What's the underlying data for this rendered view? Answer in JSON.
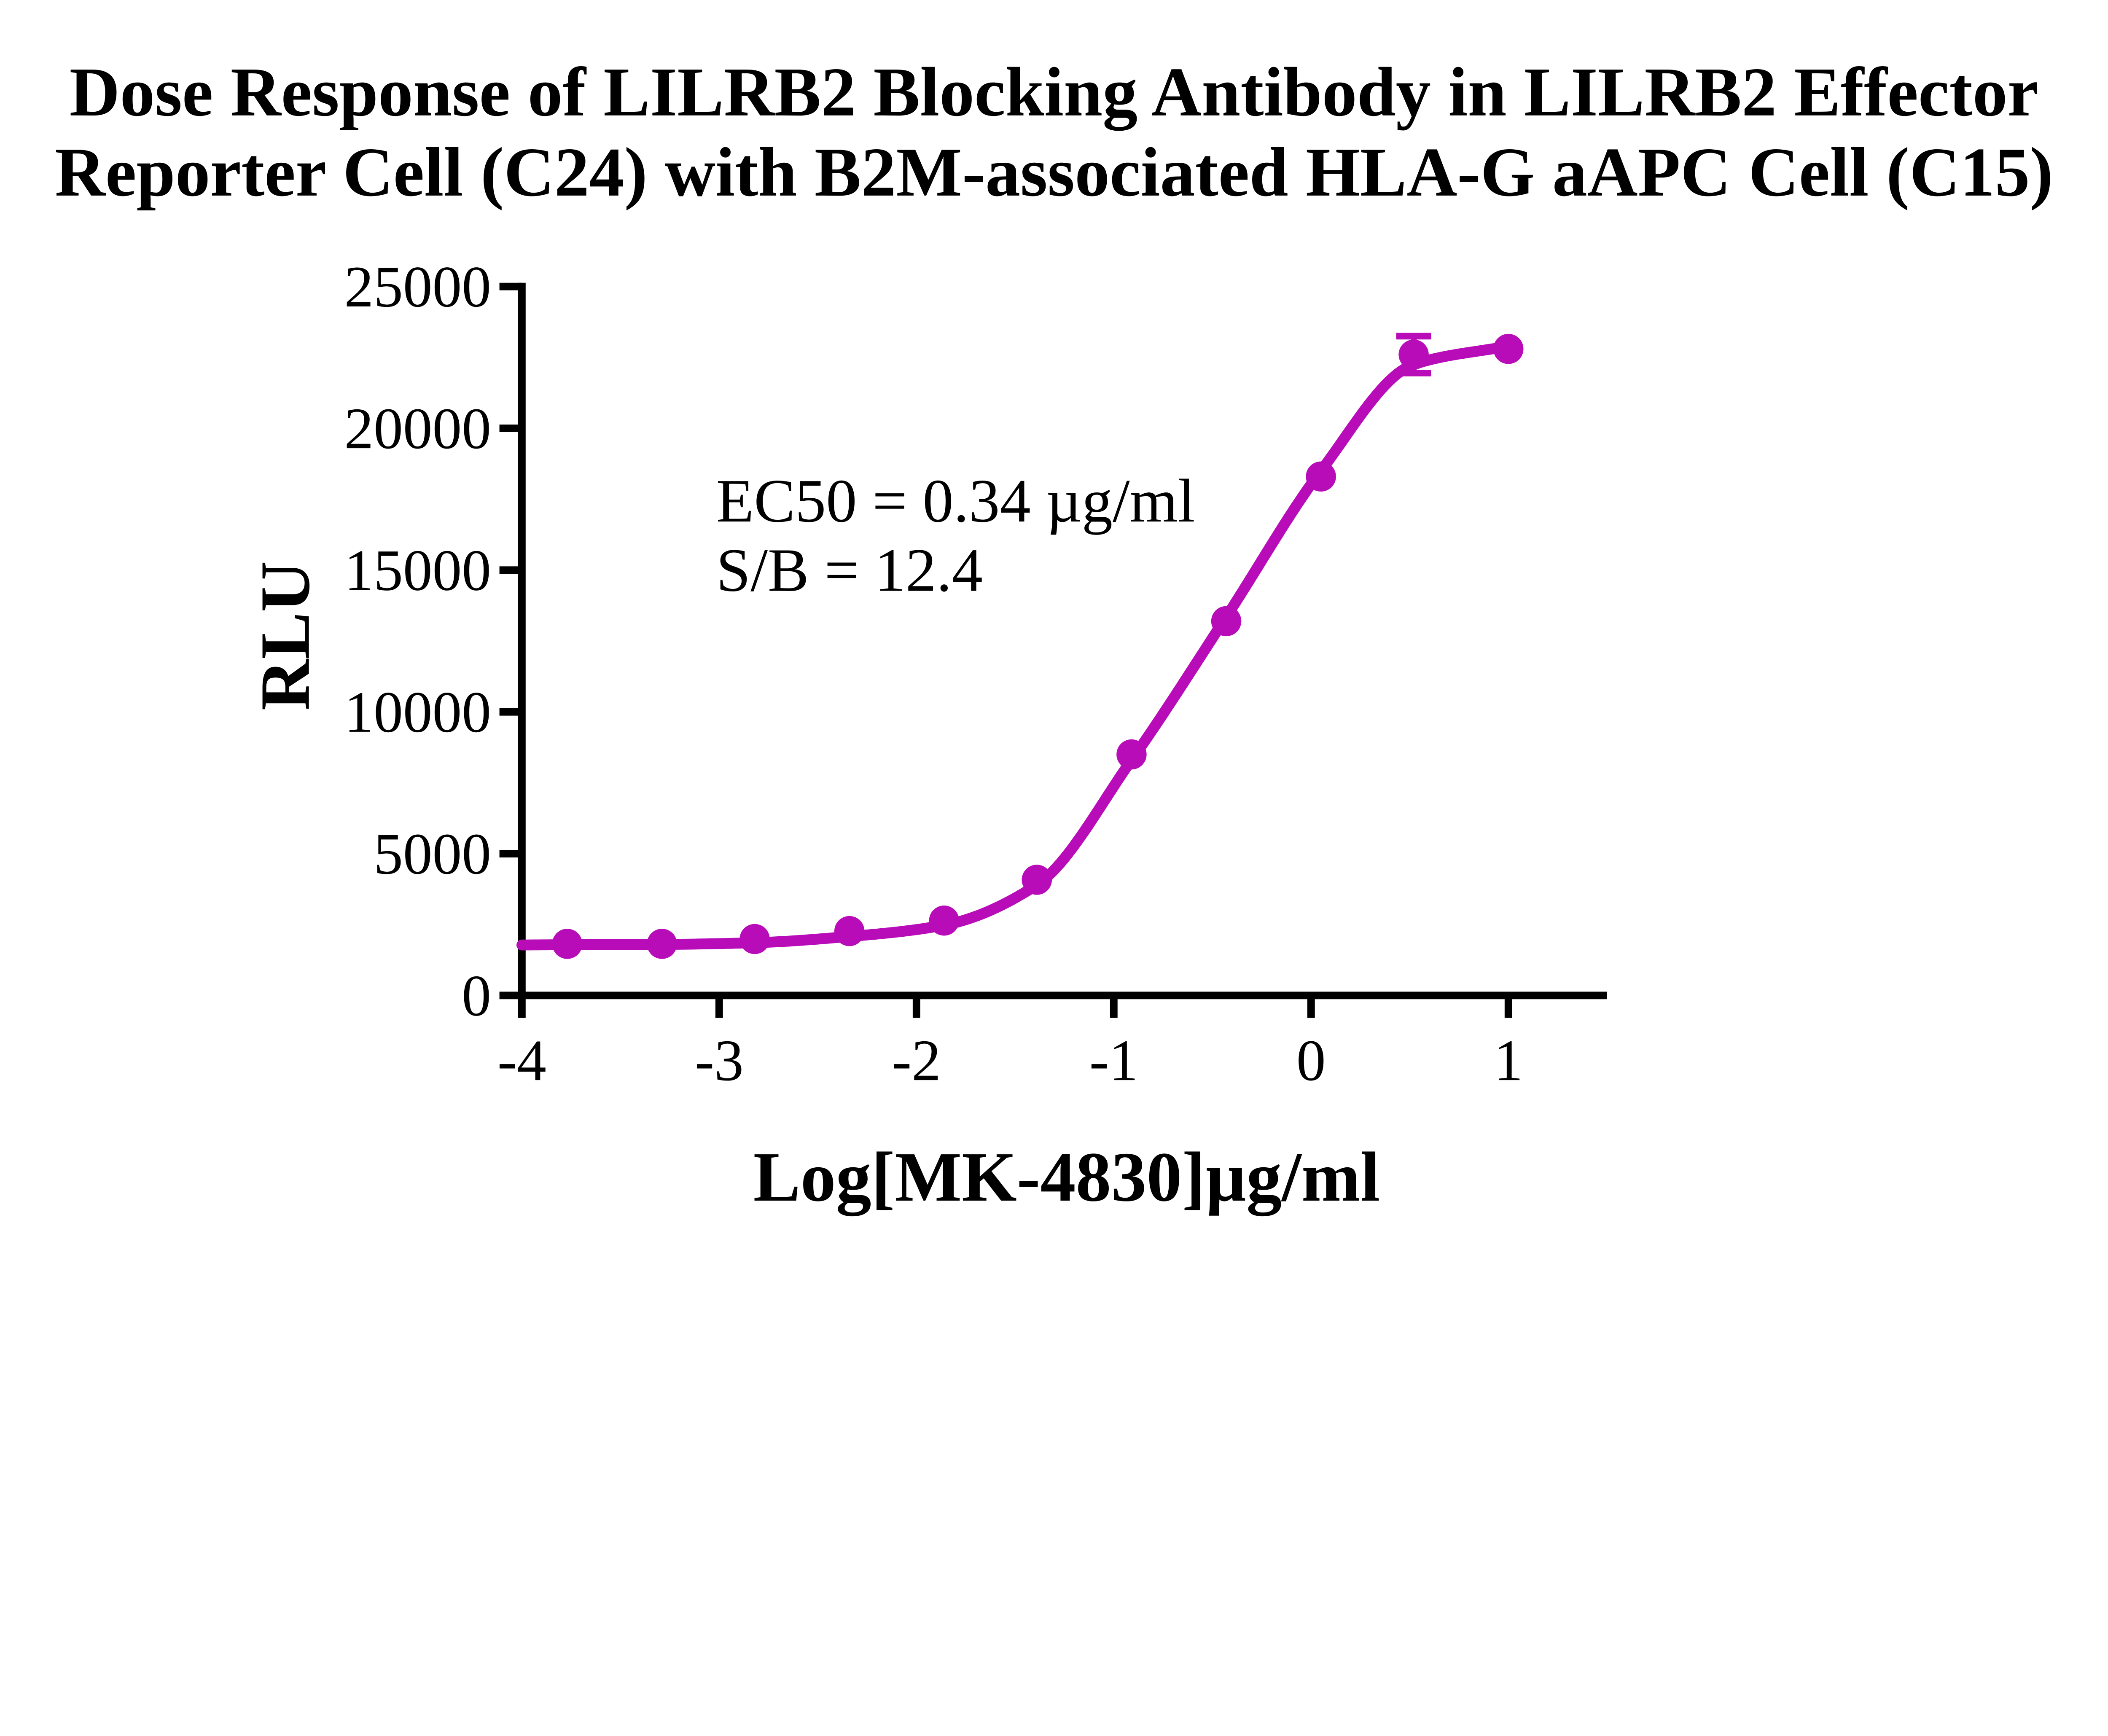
{
  "figure": {
    "title_line1": "Dose Response of LILRB2 Blocking Antibody in LILRB2 Effector",
    "title_line2": "Reporter Cell (C24) with B2M-associated HLA-G aAPC Cell (C15)",
    "background_color": "#FFFFFF",
    "axis_color": "#000000",
    "text_color": "#000000"
  },
  "chart_data": {
    "type": "scatter",
    "title": "Dose Response of LILRB2 Blocking Antibody in LILRB2 Effector Reporter Cell (C24) with B2M-associated HLA-G aAPC Cell (C15)",
    "xlabel": "Log[MK-4830]µg/ml",
    "ylabel": "RLU",
    "series_name": "MK-4830",
    "x": [
      -3.77,
      -3.29,
      -2.82,
      -2.34,
      -1.86,
      -1.39,
      -0.91,
      -0.43,
      0.05,
      0.52,
      1.0
    ],
    "y": [
      1820,
      1820,
      1990,
      2270,
      2640,
      4080,
      8500,
      13200,
      18300,
      22600,
      22800
    ],
    "error_bars": [
      {
        "x": 0.52,
        "y": 22600,
        "error": 650
      }
    ],
    "fit_curve": {
      "model": "4PL sigmoid (dose-response)",
      "x": [
        -4.0,
        -3.77,
        -3.29,
        -2.82,
        -2.34,
        -1.86,
        -1.39,
        -0.91,
        -0.43,
        0.05,
        0.52,
        1.0
      ],
      "y": [
        1780,
        1790,
        1800,
        1860,
        2080,
        2480,
        3900,
        8300,
        13350,
        18500,
        22250,
        22900
      ]
    },
    "annotations": [
      "EC50 = 0.34 µg/ml",
      "S/B = 12.4"
    ],
    "ec50_ug_ml": 0.34,
    "signal_to_background": 12.4,
    "xlim": [
      -4,
      1.5
    ],
    "ylim": [
      0,
      25000
    ],
    "xticks": [
      -4,
      -3,
      -2,
      -1,
      0,
      1
    ],
    "yticks": [
      0,
      5000,
      10000,
      15000,
      20000,
      25000
    ],
    "grid": false,
    "legend": false,
    "marker_color": "#B80CB8",
    "line_color": "#B80CB8"
  }
}
